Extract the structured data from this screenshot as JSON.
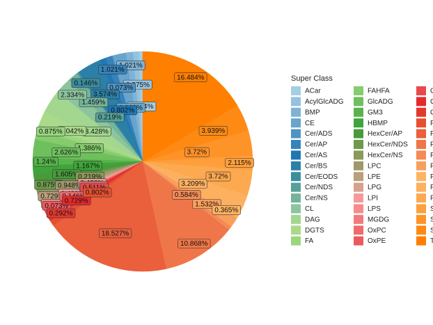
{
  "chart_data": {
    "type": "pie",
    "legend_title": "Super Class",
    "categories": [
      "ACar",
      "AcylGlcADG",
      "BMP",
      "CE",
      "Cer/ADS",
      "Cer/AP",
      "Cer/AS",
      "Cer/BS",
      "Cer/EODS",
      "Cer/NDS",
      "Cer/NS",
      "CL",
      "DAG",
      "DGTS",
      "FA",
      "FAHFA",
      "GlcADG",
      "GM3",
      "HBMP",
      "HexCer/AP",
      "HexCer/NDS",
      "HexCer/NS",
      "LPC",
      "LPE",
      "LPG",
      "LPI",
      "LPS",
      "MGDG",
      "OxPC",
      "OxPE",
      "OxPG",
      "OxPI",
      "OxPS",
      "PA",
      "PC",
      "PE",
      "PEtOH",
      "PG",
      "PI",
      "PMeOH",
      "PS",
      "SHexCer",
      "SM",
      "SQDG",
      "TAG"
    ],
    "values": [
      0.584,
      0.875,
      1.021,
      1.969,
      0.073,
      1.021,
      0.802,
      3.574,
      0.146,
      0.219,
      1.459,
      2.334,
      3.428,
      2.042,
      0.875,
      1.386,
      2.626,
      1.24,
      1.167,
      1.605,
      0.875,
      0.219,
      0.948,
      0.729,
      0.438,
      0.438,
      0.219,
      0.073,
      0.146,
      0.073,
      0.511,
      0.729,
      0.292,
      0.802,
      18.527,
      10.868,
      0.584,
      1.532,
      0.365,
      3.209,
      3.72,
      2.115,
      3.72,
      3.939,
      16.484
    ],
    "value_labels": [
      "0.584%",
      "0.875%",
      "1.021%",
      "1.969%",
      "0.073%",
      "1.021%",
      "0.802%",
      "3.574%",
      "0.146%",
      "0.219%",
      "1.459%",
      "2.334%",
      "3.428%",
      "2.042%",
      "0.875%",
      "1.386%",
      "2.626%",
      "1.24%",
      "1.167%",
      "1.605%",
      "0.875%",
      "0.219%",
      "0.948%",
      "0.729%",
      "0.438%",
      "0.438%",
      "0.219%",
      "0.073%",
      "0.146%",
      "0.073%",
      "0.511%",
      "0.729%",
      "0.292%",
      "0.802%",
      "18.527%",
      "10.868%",
      "0.584%",
      "1.532%",
      "0.365%",
      "3.209%",
      "3.72%",
      "2.115%",
      "3.72%",
      "3.939%",
      "16.484%"
    ],
    "colors": [
      "#a6cee3",
      "#95c2de",
      "#7fb3d5",
      "#68a4cc",
      "#4f93c3",
      "#3683bb",
      "#1f78b4",
      "#2b80a8",
      "#3c8e9f",
      "#57a19a",
      "#74b49a",
      "#8cc49e",
      "#a3d68f",
      "#a9da8a",
      "#9bd67f",
      "#86cc6e",
      "#6fc05d",
      "#57b44c",
      "#3fa53a",
      "#4a9a3c",
      "#6d9a4a",
      "#8a9a5a",
      "#a0986c",
      "#b8a07a",
      "#d8a08e",
      "#f59a9a",
      "#f78a8a",
      "#f27a7c",
      "#ef6b6e",
      "#ec5a5e",
      "#e84a4c",
      "#e42a2c",
      "#e4382f",
      "#e6502f",
      "#ea5f3c",
      "#ef7648",
      "#f48b55",
      "#f99f5d",
      "#fdb462",
      "#fdb060",
      "#fda94f",
      "#fe9f3c",
      "#fe9328",
      "#fe8a14",
      "#ff7f00"
    ]
  }
}
